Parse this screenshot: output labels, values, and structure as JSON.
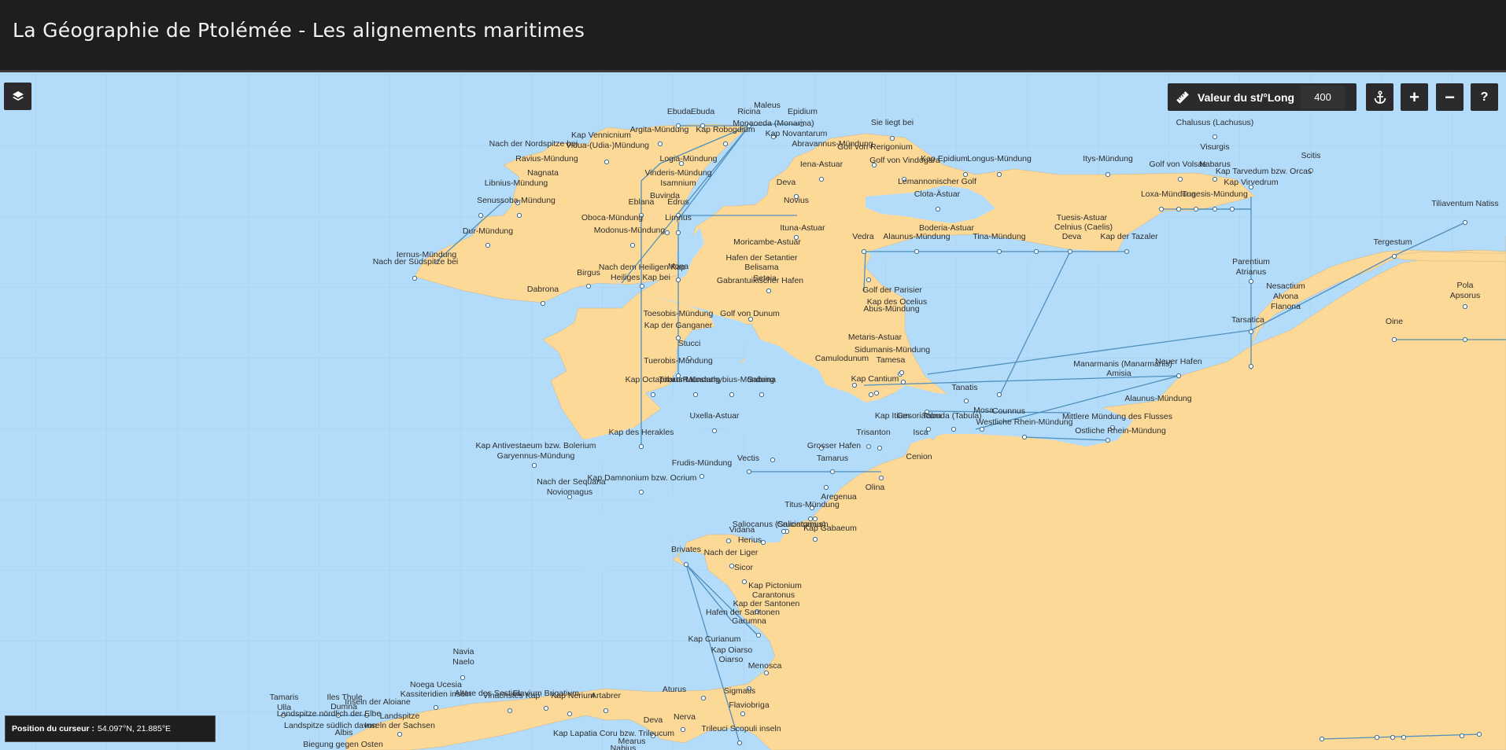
{
  "title": "La Géographie de Ptolémée - Les alignements maritimes",
  "controls": {
    "layers_icon": "layers-icon",
    "scale_label": "Valeur du st/°Long",
    "scale_value": "400",
    "ruler_icon": "ruler-icon",
    "anchor_icon": "anchor-icon",
    "zoom_in": "+",
    "zoom_out": "−",
    "help": "?"
  },
  "cursor": {
    "label": "Position du curseur :",
    "value": "54.097°N, 21.885°E"
  },
  "colors": {
    "sea": "#b3dcfb",
    "land": "#fdd998",
    "line": "#4f8fbc",
    "header": "#1e1e1f"
  },
  "map_labels": [
    "Ebuda",
    "Ebuda",
    "Maleus",
    "Ricina",
    "Epidium",
    "Argita-Mündung",
    "Kap Robogdium",
    "Monaoeda (Monarina)",
    "Kap Vennicnium",
    "Vidua-(Udia-)Mündung",
    "Nach der Nordspitze bei",
    "Ravius-Mündung",
    "Logia-Mündung",
    "Nagnata",
    "Vinderis-Mündung",
    "Isamnium",
    "Libnius-Mündung",
    "Buvinda",
    "Senussoba-Mündung",
    "Eblana",
    "Edrus",
    "Oboca-Mündung",
    "Limnus",
    "Modonus-Mündung",
    "Dur-Mündung",
    "Iernus-Mündung",
    "Nach der Südspitze bei",
    "Nach dem Heiligen Kap",
    "Mona",
    "Birgus",
    "Heiliges Kap bei",
    "Dabrona",
    "Abravannus-Mündung",
    "Golf von Rerigonium",
    "Kap Novantarum",
    "Sie liegt bei",
    "Iena-Astuar",
    "Golf von Vindogara",
    "Kap Epidium",
    "Longus-Mündung",
    "Itys-Mündung",
    "Lemannonischer Golf",
    "Golf von Volsas",
    "Nabarus",
    "Kap Tarvedum bzw. Orcas",
    "Scitis",
    "Deva",
    "Novius",
    "Clota-Ästuar",
    "Loxa-Mündung",
    "Tuaesis-Mündung",
    "Kap Virvedrum",
    "Ituna-Astuar",
    "Moricambe-Astuar",
    "Vedra",
    "Alaunus-Mündung",
    "Boderia-Astuar",
    "Tina-Mündung",
    "Tuesis-Astuar",
    "Celnius (Caelis)",
    "Kap der Tazaler",
    "Deva",
    "Hafen der Setantier",
    "Belisama",
    "Seteia",
    "Golf von Dunum",
    "Gabrantuikischer Hafen",
    "Golf der Parisier",
    "Kap des Ocelius",
    "Abus-Mündung",
    "Metaris-Astuar",
    "Toesobis-Mündung",
    "Kap der Ganganer",
    "Stucci",
    "Tuerobis-Mündung",
    "Kap Octapitarum",
    "Tobius-Mündung",
    "Ratostathybius-Mündung",
    "Sabrina",
    "Uxella-Astuar",
    "Kap des Herakles",
    "Kap Antivestaeum bzw. Bolerium",
    "Garyennus-Mündung",
    "Sidumanis-Mündung",
    "Camulodunum",
    "Tamesa",
    "Kap Cantium",
    "Tanatis",
    "Counnus",
    "Manarmanis (Manarmanis)",
    "Amisia",
    "Neuer Hafen",
    "Kap Itium",
    "Gesoriacum",
    "Tabuda (Tabula)",
    "Mosa",
    "Westliche Rhein-Mündung",
    "Mittlere Mündung des Flusses",
    "Ostliche Rhein-Mündung",
    "Alaunus-Mündung",
    "Grosser Hafen",
    "Trisanton",
    "Isca",
    "Vectis",
    "Tamarus",
    "Frudis-Mündung",
    "Cenion",
    "Kap Damnonium bzw. Ocrium",
    "Nach der Sequana",
    "Noviomagus",
    "Olina",
    "Aregenua",
    "Titus-Mündung",
    "Cruciatonnum",
    "Saliocanus (Salioncanus)",
    "Kap Gabaeum",
    "Vidana",
    "Herius",
    "Brivates",
    "Nach der Liger",
    "Sicor",
    "Kap Pictonium",
    "Carantonus",
    "Kap der Santonen",
    "Hafen der Santonen",
    "Garumna",
    "Kap Curianum",
    "Kap Oiarso",
    "Oiarso",
    "Menosca",
    "Sigmatis",
    "Aturus",
    "Nerva",
    "Deva",
    "Flaviobriga",
    "Trileuci Scopuli inseln",
    "Kap Lapatia Coru bzw. Trileucum",
    "Mearus",
    "Nabius",
    "Navia",
    "Naelo",
    "Noega Ucesia",
    "Kassiteridien inseln",
    "Altare des Sestius",
    "Vinachstes Kap",
    "Flavium Brigatium",
    "Kap Nerium",
    "Artabrer",
    "Tamaris",
    "Ulla",
    "Iles Thule",
    "Dumna",
    "Inseln der Aloiane",
    "Landspitze",
    "Inseln der Sachsen",
    "Landspitze nördlich der Elbe",
    "Landspitze südlich davon",
    "Albis",
    "Biegung gegen Osten",
    "Chalusus (Lachusus)",
    "Visurgis",
    "Tiliaventum Natiss",
    "Tergestum",
    "Parentium",
    "Atrianus",
    "Nesactium",
    "Alvona",
    "Flanona",
    "Pola",
    "Apsorus",
    "Tarsatica",
    "Oine"
  ]
}
